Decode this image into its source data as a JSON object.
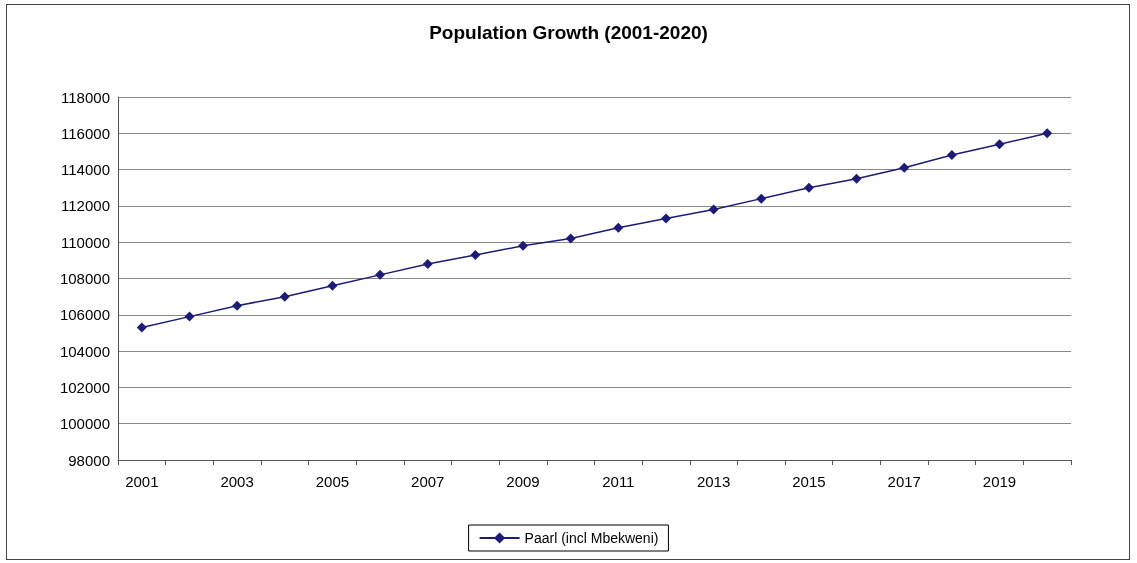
{
  "chart_data": {
    "type": "line",
    "title": "Population Growth (2001-2020)",
    "categories": [
      "2001",
      null,
      "2003",
      null,
      "2005",
      null,
      "2007",
      null,
      "2009",
      null,
      "2011",
      null,
      "2013",
      null,
      "2015",
      null,
      "2017",
      null,
      "2019",
      null
    ],
    "series": [
      {
        "name": "Paarl (incl Mbekweni)",
        "color": "#1c1c78",
        "values": [
          105300,
          105900,
          106500,
          107000,
          107600,
          108200,
          108800,
          109300,
          109800,
          110200,
          110800,
          111300,
          111800,
          112400,
          113000,
          113500,
          114100,
          114800,
          115400,
          116000
        ]
      }
    ],
    "ylim": [
      98000,
      118000
    ],
    "yticks": [
      98000,
      100000,
      102000,
      104000,
      106000,
      108000,
      110000,
      112000,
      114000,
      116000,
      118000
    ],
    "grid": "y",
    "legend": "bottom",
    "marker": "diamond",
    "line_style": "solid"
  }
}
